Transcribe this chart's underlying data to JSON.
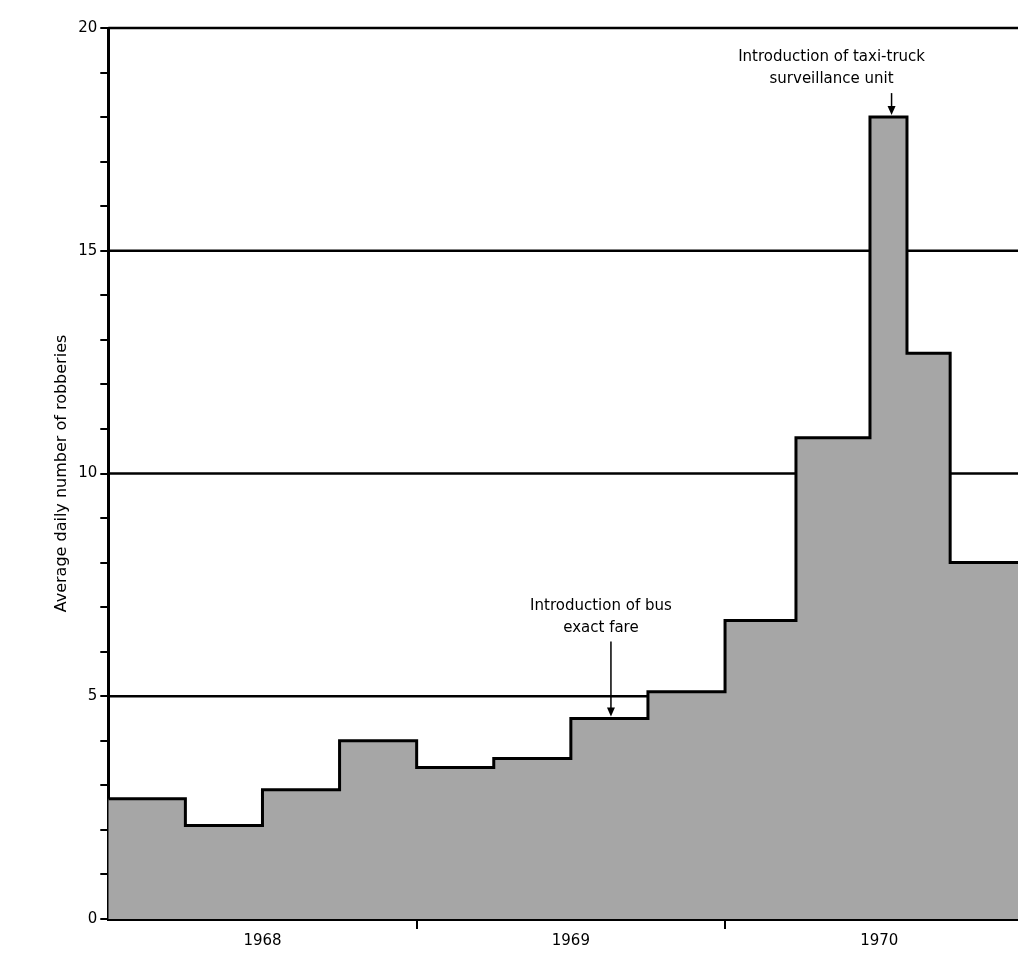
{
  "chart_data": {
    "type": "area",
    "ylabel": "Average daily number of robberies",
    "x": [
      1968.0,
      1968.25,
      1968.25,
      1968.5,
      1968.5,
      1968.75,
      1968.75,
      1969.0,
      1969.0,
      1969.25,
      1969.25,
      1969.5,
      1969.5,
      1969.75,
      1969.75,
      1970.0,
      1970.0,
      1970.23,
      1970.23,
      1970.47,
      1970.47,
      1970.59,
      1970.59,
      1970.73,
      1970.73,
      1970.95
    ],
    "series": [
      {
        "color": "#a6a6a6",
        "values": [
          2.7,
          2.7,
          2.1,
          2.1,
          2.9,
          2.9,
          4.0,
          4.0,
          3.4,
          3.4,
          3.6,
          3.6,
          4.5,
          4.5,
          5.1,
          5.1,
          6.7,
          6.7,
          10.8,
          10.8,
          18.0,
          18.0,
          12.7,
          12.7,
          8.0,
          8.0
        ]
      }
    ],
    "xlim": [
      1968.0,
      1970.95
    ],
    "xticks": [
      {
        "value": 1968.5,
        "label": "1968"
      },
      {
        "value": 1969,
        "label": null
      },
      {
        "value": 1969.5,
        "label": "1969"
      },
      {
        "value": 1970,
        "label": null
      },
      {
        "value": 1970.5,
        "label": "1970"
      }
    ],
    "ylim": [
      0,
      20
    ],
    "yticks": [
      0,
      {
        "value": 1,
        "label": null
      },
      {
        "value": 2,
        "label": null
      },
      {
        "value": 3,
        "label": null
      },
      {
        "value": 4,
        "label": null
      },
      5,
      {
        "value": 6,
        "label": null
      },
      {
        "value": 7,
        "label": null
      },
      {
        "value": 8,
        "label": null
      },
      {
        "value": 9,
        "label": null
      },
      10,
      {
        "value": 11,
        "label": null
      },
      {
        "value": 12,
        "label": null
      },
      {
        "value": 13,
        "label": null
      },
      {
        "value": 14,
        "label": null
      },
      15,
      {
        "value": 16,
        "label": null
      },
      {
        "value": 17,
        "label": null
      },
      {
        "value": 18,
        "label": null
      },
      {
        "value": 19,
        "label": null
      },
      20
    ],
    "grid": "y",
    "annotations": [
      {
        "text": "Introduction of bus exact fare",
        "x": 1969.63,
        "y": 4.5
      },
      {
        "text": "Introduction of taxi-truck surveillance unit",
        "x": 1970.54,
        "y": 18.0
      }
    ]
  }
}
